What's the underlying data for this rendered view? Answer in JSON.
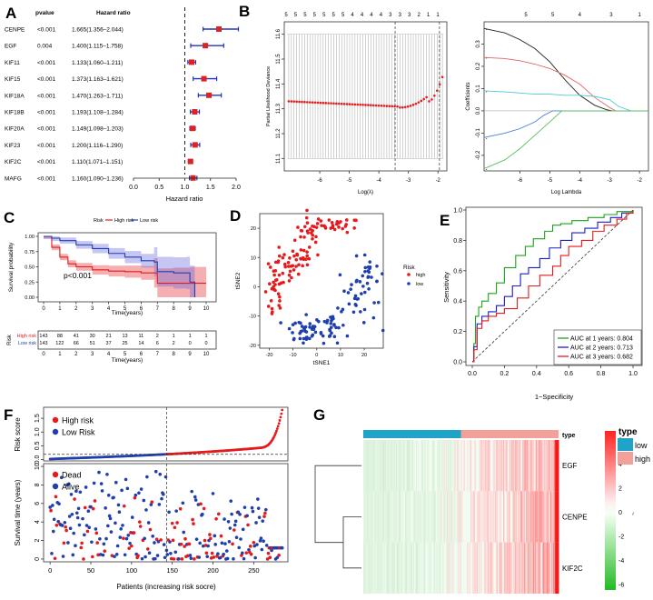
{
  "panel_letters": {
    "A": "A",
    "B": "B",
    "C": "C",
    "D": "D",
    "E": "E",
    "F": "F",
    "G": "G"
  },
  "colors": {
    "high": "#e41a1c",
    "low": "#1f3fae",
    "green": "#1aa31a",
    "forest_box": "#dd2222",
    "forest_ci": "#2233bb",
    "heat_low": "#1fa3c7",
    "heat_high": "#f4a09a"
  },
  "chart_data": [
    {
      "id": "A",
      "type": "forest",
      "col_pvalue": "pvalue",
      "col_hr": "Hazard ratio",
      "xlabel": "Hazard ratio",
      "xlim": [
        0,
        2.0
      ],
      "ticks": [
        "0.0",
        "0.5",
        "1.0",
        "1.5",
        "2.0"
      ],
      "ref_line": 1.0,
      "rows": [
        {
          "gene": "CENPE",
          "p": "<0.001",
          "hr_text": "1.665(1.356–2.044)",
          "hr": 1.665,
          "lo": 1.356,
          "hi": 2.044
        },
        {
          "gene": "EGF",
          "p": "0.004",
          "hr_text": "1.400(1.115–1.758)",
          "hr": 1.4,
          "lo": 1.115,
          "hi": 1.758
        },
        {
          "gene": "KIF11",
          "p": "<0.001",
          "hr_text": "1.133(1.060–1.211)",
          "hr": 1.133,
          "lo": 1.06,
          "hi": 1.211
        },
        {
          "gene": "KIF15",
          "p": "<0.001",
          "hr_text": "1.373(1.163–1.621)",
          "hr": 1.373,
          "lo": 1.163,
          "hi": 1.621
        },
        {
          "gene": "KIF18A",
          "p": "<0.001",
          "hr_text": "1.470(1.263–1.711)",
          "hr": 1.47,
          "lo": 1.263,
          "hi": 1.711
        },
        {
          "gene": "KIF18B",
          "p": "<0.001",
          "hr_text": "1.193(1.108–1.284)",
          "hr": 1.193,
          "lo": 1.108,
          "hi": 1.284
        },
        {
          "gene": "KIF20A",
          "p": "<0.001",
          "hr_text": "1.149(1.098–1.203)",
          "hr": 1.149,
          "lo": 1.098,
          "hi": 1.203
        },
        {
          "gene": "KIF23",
          "p": "<0.001",
          "hr_text": "1.200(1.116–1.290)",
          "hr": 1.2,
          "lo": 1.116,
          "hi": 1.29
        },
        {
          "gene": "KIF2C",
          "p": "<0.001",
          "hr_text": "1.110(1.071–1.151)",
          "hr": 1.11,
          "lo": 1.071,
          "hi": 1.151
        },
        {
          "gene": "MAFG",
          "p": "<0.001",
          "hr_text": "1.160(1.090–1.236)",
          "hr": 1.16,
          "lo": 1.09,
          "hi": 1.236
        }
      ]
    },
    {
      "id": "B1",
      "type": "scatter",
      "xlabel": "Log(λ)",
      "ylabel": "Partial Likelihood Deviance",
      "xlim": [
        -7.2,
        -1.7
      ],
      "ylim": [
        11.05,
        11.65
      ],
      "xticks": [
        "-6",
        "-5",
        "-4",
        "-3",
        "-2"
      ],
      "yticks": [
        "11.1",
        "11.2",
        "11.3",
        "11.4",
        "11.5",
        "11.6"
      ],
      "top_counts": [
        "5",
        "5",
        "5",
        "5",
        "5",
        "5",
        "5",
        "4",
        "4",
        "4",
        "4",
        "3",
        "3",
        "3",
        "2",
        "1",
        "1"
      ],
      "vlines": [
        -3.45,
        -1.95
      ]
    },
    {
      "id": "B2",
      "type": "line",
      "xlabel": "Log Lambda",
      "ylabel": "Coefficients",
      "xlim": [
        -7.2,
        -1.7
      ],
      "ylim": [
        -0.27,
        0.4
      ],
      "xticks": [
        "-6",
        "-5",
        "-4",
        "-3",
        "-2"
      ],
      "yticks": [
        "-0.2",
        "-0.1",
        "0.0",
        "0.1",
        "0.2",
        "0.3"
      ],
      "top_counts": [
        "5",
        "5",
        "4",
        "3",
        "1"
      ],
      "series": [
        {
          "name": "black",
          "color": "#222222",
          "x": [
            -7.2,
            -6.5,
            -6,
            -5.5,
            -5,
            -4.5,
            -4,
            -3.5,
            -3.1,
            -2.9
          ],
          "y": [
            0.37,
            0.35,
            0.32,
            0.28,
            0.22,
            0.14,
            0.07,
            0.025,
            0.005,
            0
          ]
        },
        {
          "name": "red",
          "color": "#e06565",
          "x": [
            -7.2,
            -6.5,
            -6,
            -5.5,
            -5,
            -4.5,
            -4,
            -3.5,
            -3,
            -2.8
          ],
          "y": [
            0.24,
            0.235,
            0.225,
            0.21,
            0.19,
            0.16,
            0.12,
            0.06,
            0.015,
            0
          ]
        },
        {
          "name": "cyan",
          "color": "#4ec9d6",
          "x": [
            -7.2,
            -6.5,
            -6,
            -5.5,
            -5,
            -4.5,
            -4,
            -3.5,
            -3,
            -2.7,
            -2.3
          ],
          "y": [
            0.09,
            0.085,
            0.08,
            0.075,
            0.075,
            0.07,
            0.07,
            0.065,
            0.05,
            0.02,
            0
          ]
        },
        {
          "name": "blue",
          "color": "#4a7fd6",
          "x": [
            -7.2,
            -6.5,
            -6,
            -5.5,
            -5.2,
            -4.9
          ],
          "y": [
            -0.12,
            -0.1,
            -0.08,
            -0.05,
            -0.02,
            0
          ]
        },
        {
          "name": "green",
          "color": "#5cbf5c",
          "x": [
            -7.2,
            -6.5,
            -6,
            -5.5,
            -5,
            -4.6
          ],
          "y": [
            -0.26,
            -0.22,
            -0.17,
            -0.11,
            -0.05,
            0
          ]
        }
      ]
    },
    {
      "id": "C",
      "type": "line",
      "legend_title": "Risk",
      "legend": [
        "High risk",
        "Low risk"
      ],
      "xlabel": "Time(years)",
      "ylabel": "Survival probability",
      "xlim": [
        0,
        10
      ],
      "ylim": [
        0,
        1
      ],
      "xticks": [
        "0",
        "1",
        "2",
        "3",
        "4",
        "5",
        "6",
        "7",
        "8",
        "9",
        "10"
      ],
      "yticks": [
        "0.00",
        "0.25",
        "0.50",
        "0.75",
        "1.00"
      ],
      "pvalue": "p<0.001",
      "series": [
        {
          "name": "High risk",
          "x": [
            0,
            0.5,
            1,
            1.5,
            2,
            3,
            4,
            5,
            6,
            6.8,
            7,
            8,
            9,
            10
          ],
          "y": [
            1,
            0.82,
            0.66,
            0.55,
            0.5,
            0.45,
            0.43,
            0.42,
            0.4,
            0.4,
            0.23,
            0.23,
            0.23,
            0.23
          ]
        },
        {
          "name": "Low risk",
          "x": [
            0,
            0.5,
            1,
            2,
            3,
            4,
            5,
            6,
            6.8,
            7,
            8,
            8.8,
            9,
            9.3
          ],
          "y": [
            1,
            0.97,
            0.93,
            0.86,
            0.8,
            0.72,
            0.66,
            0.6,
            0.58,
            0.42,
            0.4,
            0.4,
            0.25,
            0.0
          ]
        }
      ],
      "risk_table": {
        "title": "Risk",
        "xlabel": "Time(years)",
        "rows": [
          {
            "name": "High risk",
            "counts": [
              "143",
              "88",
              "41",
              "30",
              "21",
              "13",
              "11",
              "2",
              "1",
              "1",
              "1"
            ]
          },
          {
            "name": "Low risk",
            "counts": [
              "143",
              "122",
              "66",
              "51",
              "37",
              "25",
              "14",
              "6",
              "2",
              "0",
              "0"
            ]
          }
        ]
      }
    },
    {
      "id": "D",
      "type": "scatter",
      "xlabel": "tSNE1",
      "ylabel": "tSNE2",
      "xlim": [
        -24,
        28
      ],
      "ylim": [
        -21,
        25
      ],
      "xticks": [
        "-20",
        "-10",
        "0",
        "10",
        "20"
      ],
      "yticks": [
        "-20",
        "-10",
        "0",
        "10",
        "20"
      ],
      "legend_title": "Risk",
      "legend": [
        "high",
        "low"
      ]
    },
    {
      "id": "E",
      "type": "line",
      "xlabel": "1−Specificity",
      "ylabel": "Sensitivity",
      "xlim": [
        0,
        1
      ],
      "ylim": [
        0,
        1
      ],
      "xticks": [
        "0.0",
        "0.2",
        "0.4",
        "0.6",
        "0.8",
        "1.0"
      ],
      "yticks": [
        "0.0",
        "0.2",
        "0.4",
        "0.6",
        "0.8",
        "1.0"
      ],
      "series": [
        {
          "name": "AUC at 1 years: 0.804",
          "color": "#1aa31a",
          "x": [
            0,
            0.01,
            0.02,
            0.04,
            0.06,
            0.1,
            0.15,
            0.2,
            0.27,
            0.33,
            0.38,
            0.45,
            0.5,
            0.55,
            0.62,
            0.72,
            0.82,
            0.9,
            1
          ],
          "y": [
            0,
            0.12,
            0.3,
            0.36,
            0.4,
            0.45,
            0.52,
            0.62,
            0.7,
            0.76,
            0.81,
            0.86,
            0.9,
            0.91,
            0.93,
            0.95,
            0.97,
            0.99,
            1
          ]
        },
        {
          "name": "AUC at 2 years: 0.713",
          "color": "#1b1bcf",
          "x": [
            0,
            0.01,
            0.03,
            0.06,
            0.1,
            0.15,
            0.2,
            0.25,
            0.3,
            0.35,
            0.42,
            0.48,
            0.55,
            0.62,
            0.7,
            0.78,
            0.86,
            0.93,
            1
          ],
          "y": [
            0,
            0.1,
            0.25,
            0.3,
            0.33,
            0.37,
            0.43,
            0.5,
            0.58,
            0.62,
            0.68,
            0.75,
            0.8,
            0.85,
            0.88,
            0.92,
            0.95,
            0.98,
            1
          ]
        },
        {
          "name": "AUC at 3 years: 0.682",
          "color": "#e41a1c",
          "x": [
            0,
            0.01,
            0.03,
            0.06,
            0.1,
            0.15,
            0.2,
            0.28,
            0.35,
            0.42,
            0.5,
            0.55,
            0.6,
            0.68,
            0.75,
            0.82,
            0.9,
            0.96,
            1
          ],
          "y": [
            0,
            0.08,
            0.22,
            0.27,
            0.3,
            0.32,
            0.35,
            0.42,
            0.5,
            0.57,
            0.63,
            0.7,
            0.76,
            0.8,
            0.86,
            0.9,
            0.94,
            0.98,
            1
          ]
        }
      ]
    },
    {
      "id": "F1",
      "type": "scatter",
      "ylabel": "Risk score",
      "legend": [
        "High risk",
        "Low Risk"
      ],
      "xlim": [
        -8,
        292
      ],
      "ylim": [
        -0.05,
        1.9
      ],
      "yticks": [
        "0.0",
        "0.5",
        "1.0",
        "1.5"
      ],
      "cutoff_index": 143,
      "threshold": 0.19
    },
    {
      "id": "F2",
      "type": "scatter",
      "ylabel": "Survival time (years)",
      "xlabel": "Patients (increasing risk socre)",
      "legend": [
        "Dead",
        "Alive"
      ],
      "xlim": [
        -8,
        292
      ],
      "ylim": [
        -0.3,
        10.3
      ],
      "xticks": [
        "0",
        "50",
        "100",
        "150",
        "200",
        "250"
      ],
      "yticks": [
        "0",
        "2",
        "4",
        "6",
        "8",
        "10"
      ],
      "cutoff_index": 143
    },
    {
      "id": "G",
      "type": "heatmap",
      "rows": [
        "EGF",
        "CENPE",
        "KIF2C"
      ],
      "type_label": "type",
      "groups": [
        "low",
        "high"
      ],
      "legend_title": "type",
      "color_scale_ticks": [
        "6",
        "4",
        "2",
        "0",
        "-2",
        "-4",
        "-6"
      ],
      "n_low": 143,
      "n_high": 143
    }
  ]
}
